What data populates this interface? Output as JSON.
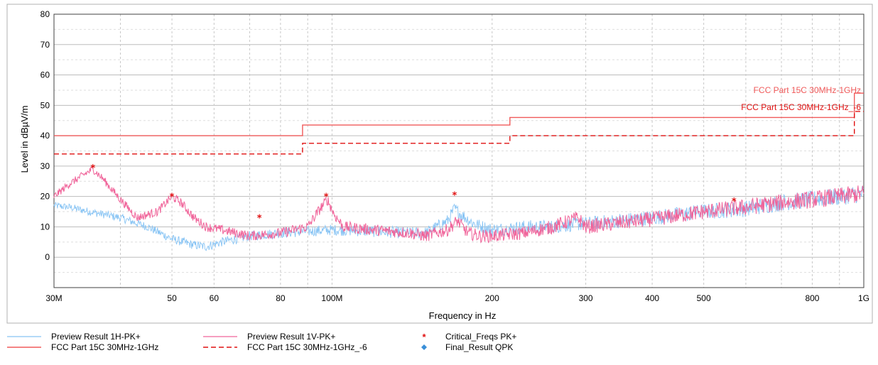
{
  "chart_data": {
    "type": "line",
    "title": "",
    "xlabel": "Frequency in Hz",
    "ylabel": "Level in dBµV/m",
    "x_scale": "log",
    "xlim": [
      30000000,
      1000000000
    ],
    "ylim": [
      -10,
      80
    ],
    "grid": true,
    "x_ticks": [
      {
        "value": 30000000,
        "label": "30M"
      },
      {
        "value": 50000000,
        "label": "50"
      },
      {
        "value": 60000000,
        "label": "60"
      },
      {
        "value": 80000000,
        "label": "80"
      },
      {
        "value": 100000000,
        "label": "100M"
      },
      {
        "value": 200000000,
        "label": "200"
      },
      {
        "value": 300000000,
        "label": "300"
      },
      {
        "value": 400000000,
        "label": "400"
      },
      {
        "value": 500000000,
        "label": "500"
      },
      {
        "value": 800000000,
        "label": "800"
      },
      {
        "value": 1000000000,
        "label": "1G"
      }
    ],
    "x_minor_ticks": [
      40000000,
      70000000,
      90000000,
      600000000,
      700000000,
      900000000
    ],
    "y_ticks": [
      0,
      10,
      20,
      30,
      40,
      50,
      60,
      70,
      80
    ],
    "limit_labels": [
      {
        "text": "FCC Part 15C 30MHz-1GHz",
        "color": "#f05a5a"
      },
      {
        "text": "FCC Part 15C 30MHz-1GHz_-6",
        "color": "#e01010"
      }
    ],
    "series": [
      {
        "name": "Preview Result 1H-PK+",
        "color": "#88c4f4",
        "style": "noisy",
        "x": [
          30000000,
          32000000,
          35000000,
          40000000,
          45000000,
          50000000,
          55000000,
          58000000,
          62000000,
          70000000,
          80000000,
          90000000,
          100000000,
          120000000,
          140000000,
          150000000,
          165000000,
          170000000,
          175000000,
          185000000,
          200000000,
          230000000,
          260000000,
          290000000,
          300000000,
          400000000,
          500000000,
          600000000,
          700000000,
          800000000,
          900000000,
          1000000000
        ],
        "y": [
          17,
          16.5,
          15,
          13,
          10,
          6,
          4,
          3.5,
          5,
          7,
          8,
          8.5,
          9,
          8.5,
          8,
          8,
          12,
          16,
          14,
          11,
          9,
          10,
          10,
          11,
          11,
          13,
          15,
          16,
          18,
          19,
          20,
          21
        ]
      },
      {
        "name": "Preview Result 1V-PK+",
        "color": "#f0649a",
        "style": "noisy",
        "x": [
          30000000,
          32000000,
          34000000,
          35500000,
          37000000,
          40000000,
          43000000,
          47000000,
          50000000,
          52000000,
          55000000,
          58000000,
          62000000,
          70000000,
          80000000,
          90000000,
          95000000,
          98000000,
          101000000,
          105000000,
          120000000,
          140000000,
          150000000,
          165000000,
          172000000,
          180000000,
          190000000,
          200000000,
          230000000,
          260000000,
          290000000,
          300000000,
          400000000,
          500000000,
          600000000,
          700000000,
          800000000,
          900000000,
          1000000000
        ],
        "y": [
          20,
          24,
          27,
          29,
          26,
          19,
          13,
          15,
          20,
          18,
          13,
          10,
          9,
          7,
          8,
          10,
          16,
          19,
          14,
          10,
          9,
          8,
          7,
          9,
          12,
          8,
          7,
          7,
          8,
          10,
          13,
          10,
          12.5,
          15,
          16.5,
          18,
          19,
          20,
          21
        ]
      },
      {
        "name": "FCC Part 15C 30MHz-1GHz",
        "color": "#f05a5a",
        "style": "step",
        "x": [
          30000000,
          88000000,
          88000000,
          216000000,
          216000000,
          960000000,
          960000000,
          1000000000
        ],
        "y": [
          40,
          40,
          43.5,
          43.5,
          46,
          46,
          54,
          54
        ]
      },
      {
        "name": "FCC Part 15C 30MHz-1GHz_-6",
        "color": "#e01010",
        "style": "dashed-step",
        "x": [
          30000000,
          88000000,
          88000000,
          216000000,
          216000000,
          960000000,
          960000000,
          1000000000
        ],
        "y": [
          34,
          34,
          37.5,
          37.5,
          40,
          40,
          48,
          48
        ]
      },
      {
        "name": "Critical_Freqs PK+",
        "color": "#e01010",
        "style": "star",
        "x": [
          35500000,
          50000000,
          73000000,
          97500000,
          170000000,
          570000000
        ],
        "y": [
          29.5,
          20,
          13,
          20,
          20.5,
          18.5
        ]
      },
      {
        "name": "Final_Result QPK",
        "color": "#3a8fd8",
        "style": "diamond",
        "x": [],
        "y": []
      }
    ]
  }
}
